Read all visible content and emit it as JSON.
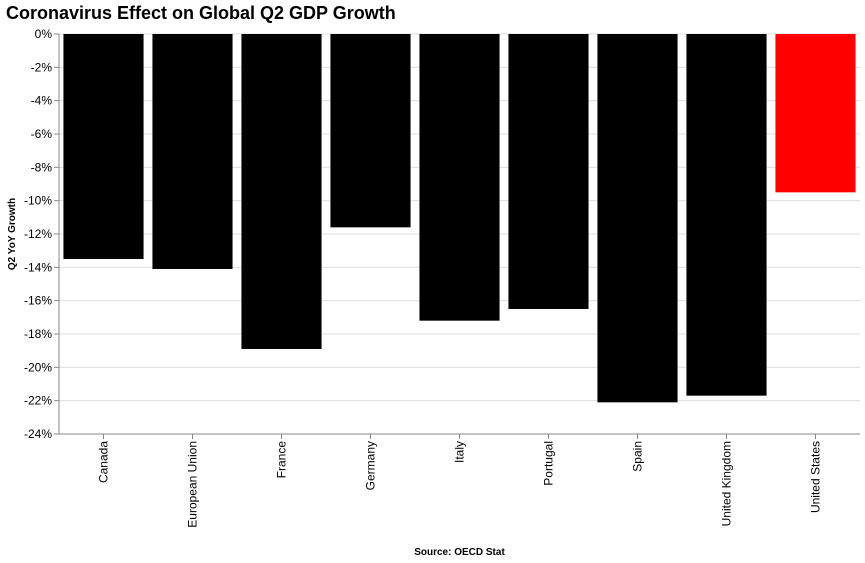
{
  "chart_data": {
    "type": "bar",
    "title": "Coronavirus Effect on Global Q2 GDP Growth",
    "xlabel": "Source: OECD Stat",
    "ylabel": "Q2 YoY Growth",
    "categories": [
      "Canada",
      "European Union",
      "France",
      "Germany",
      "Italy",
      "Portugal",
      "Spain",
      "United Kingdom",
      "United States"
    ],
    "values": [
      -13.5,
      -14.1,
      -18.9,
      -11.6,
      -17.2,
      -16.5,
      -22.1,
      -21.7,
      -9.5
    ],
    "bar_colors": [
      "#000000",
      "#000000",
      "#000000",
      "#000000",
      "#000000",
      "#000000",
      "#000000",
      "#000000",
      "#ff0000"
    ],
    "ylim": [
      -24,
      0
    ],
    "yticks": [
      0,
      -2,
      -4,
      -6,
      -8,
      -10,
      -12,
      -14,
      -16,
      -18,
      -20,
      -22,
      -24
    ],
    "ytick_labels": [
      "0%",
      "-2%",
      "-4%",
      "-6%",
      "-8%",
      "-10%",
      "-12%",
      "-14%",
      "-16%",
      "-18%",
      "-20%",
      "-22%",
      "-24%"
    ],
    "grid": true,
    "legend": "none"
  }
}
